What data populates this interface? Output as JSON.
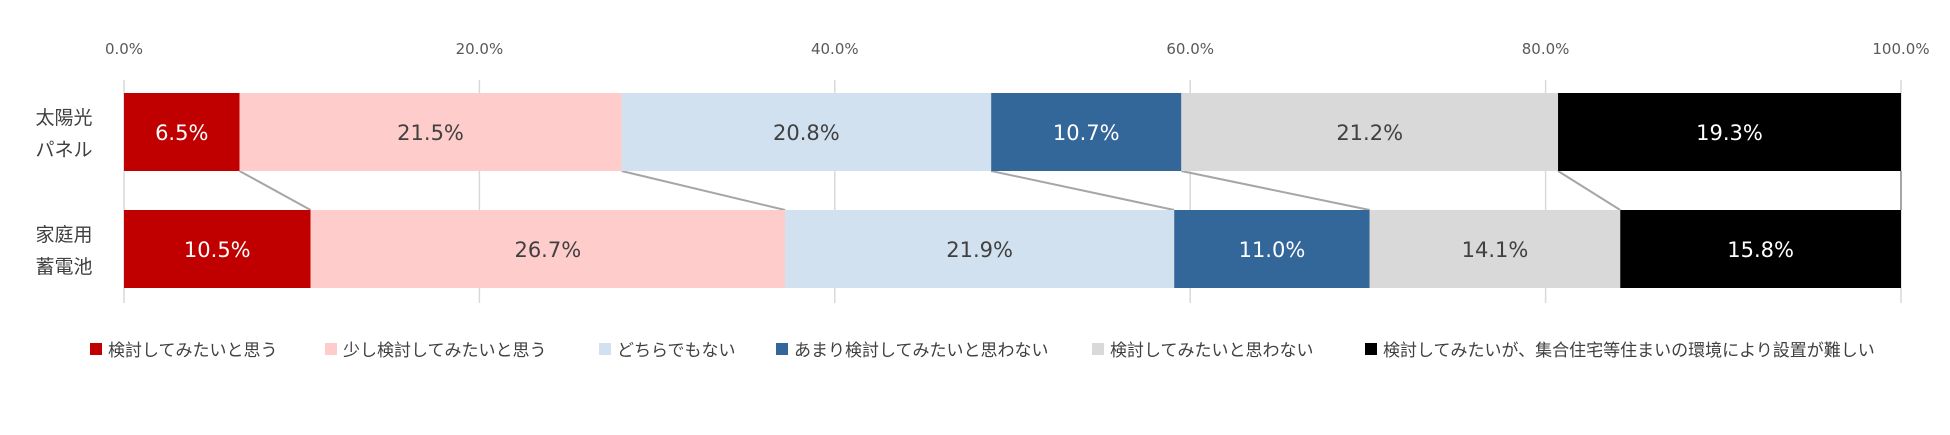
{
  "chart_data": {
    "type": "bar",
    "orientation": "horizontal",
    "stacked": true,
    "percent_scale": true,
    "categories": [
      "太陽光パネル",
      "家庭用蓄電池"
    ],
    "category_label_lines": [
      [
        "太陽光",
        "パネル"
      ],
      [
        "家庭用",
        "蓄電池"
      ]
    ],
    "series": [
      {
        "name": "検討してみたいと思う",
        "values": [
          6.5,
          10.5
        ],
        "labels": [
          "6.5%",
          "10.5%"
        ],
        "color": "#c00000",
        "label_color": "#ffffff"
      },
      {
        "name": "少し検討してみたいと思う",
        "values": [
          21.5,
          26.7
        ],
        "labels": [
          "21.5%",
          "26.7%"
        ],
        "color": "#ffcccc",
        "label_color": "#404040"
      },
      {
        "name": "どちらでもない",
        "values": [
          20.8,
          21.9
        ],
        "labels": [
          "20.8%",
          "21.9%"
        ],
        "color": "#d2e1f0",
        "label_color": "#404040"
      },
      {
        "name": "あまり検討してみたいと思わない",
        "values": [
          10.7,
          11.0
        ],
        "labels": [
          "10.7%",
          "11.0%"
        ],
        "color": "#336699",
        "label_color": "#ffffff"
      },
      {
        "name": "検討してみたいと思わない",
        "values": [
          21.2,
          14.1
        ],
        "labels": [
          "21.2%",
          "14.1%"
        ],
        "color": "#d9d9d9",
        "label_color": "#404040"
      },
      {
        "name": "検討してみたいが、集合住宅等住まいの環境により設置が難しい",
        "values": [
          19.3,
          15.8
        ],
        "labels": [
          "19.3%",
          "15.8%"
        ],
        "color": "#000000",
        "label_color": "#ffffff"
      }
    ],
    "xlim": [
      0,
      100
    ],
    "xticks": [
      0,
      20,
      40,
      60,
      80,
      100
    ],
    "xtick_labels": [
      "0.0%",
      "20.0%",
      "40.0%",
      "60.0%",
      "80.0%",
      "100.0%"
    ],
    "xaxis_position": "top",
    "grid": true,
    "series_lines": true,
    "legend_position": "bottom",
    "title": "",
    "xlabel": "",
    "ylabel": ""
  }
}
